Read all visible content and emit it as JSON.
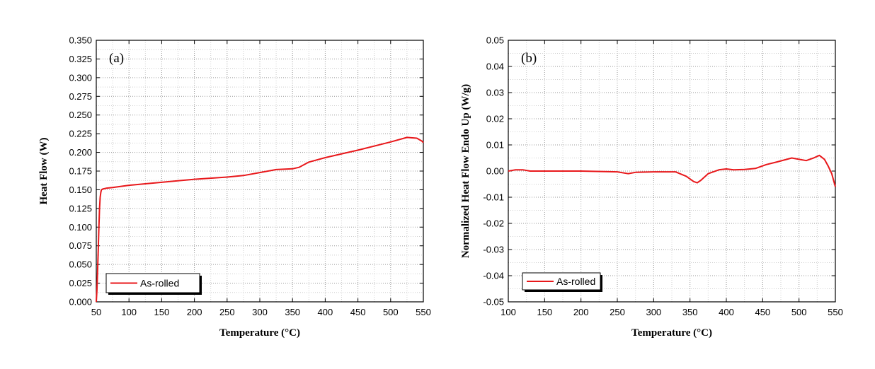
{
  "chart_data": [
    {
      "type": "line",
      "panel_label": "(a)",
      "xlabel": "Temperature (°C)",
      "ylabel": "Heat Flow (W)",
      "xlim": [
        50,
        550
      ],
      "ylim": [
        0,
        0.35
      ],
      "x_ticks": [
        "50",
        "100",
        "150",
        "200",
        "250",
        "300",
        "350",
        "400",
        "450",
        "500",
        "550"
      ],
      "y_ticks": [
        "0.000",
        "0.025",
        "0.050",
        "0.075",
        "0.100",
        "0.125",
        "0.150",
        "0.175",
        "0.200",
        "0.225",
        "0.250",
        "0.275",
        "0.300",
        "0.325",
        "0.350"
      ],
      "grid": true,
      "legend_position": "bottom-left",
      "line_color": "#e8181b",
      "series": [
        {
          "name": "As-rolled",
          "x": [
            50,
            51,
            52,
            53,
            54,
            55,
            56,
            57,
            58,
            60,
            65,
            75,
            100,
            150,
            200,
            250,
            275,
            300,
            325,
            350,
            360,
            375,
            400,
            450,
            500,
            525,
            540,
            548,
            550
          ],
          "y": [
            0.0,
            0.015,
            0.04,
            0.07,
            0.1,
            0.125,
            0.14,
            0.147,
            0.15,
            0.151,
            0.152,
            0.153,
            0.156,
            0.16,
            0.164,
            0.167,
            0.169,
            0.173,
            0.177,
            0.178,
            0.18,
            0.187,
            0.193,
            0.203,
            0.214,
            0.22,
            0.219,
            0.215,
            0.213
          ]
        }
      ]
    },
    {
      "type": "line",
      "panel_label": "(b)",
      "xlabel": "Temperature (°C)",
      "ylabel": "Normalized Heat Flow Endo Up (W/g)",
      "xlim": [
        100,
        550
      ],
      "ylim": [
        -0.05,
        0.05
      ],
      "x_ticks": [
        "100",
        "150",
        "200",
        "250",
        "300",
        "350",
        "400",
        "450",
        "500",
        "550"
      ],
      "y_ticks": [
        "-0.05",
        "-0.04",
        "-0.03",
        "-0.02",
        "-0.01",
        "0.00",
        "0.01",
        "0.02",
        "0.03",
        "0.04",
        "0.05"
      ],
      "grid": true,
      "legend_position": "bottom-left",
      "line_color": "#e8181b",
      "series": [
        {
          "name": "As-rolled",
          "x": [
            100,
            110,
            120,
            130,
            150,
            200,
            250,
            265,
            275,
            300,
            330,
            345,
            355,
            360,
            365,
            375,
            390,
            400,
            410,
            425,
            440,
            455,
            470,
            490,
            500,
            510,
            520,
            528,
            535,
            540,
            545,
            550
          ],
          "y": [
            0.0,
            0.0005,
            0.0005,
            0.0,
            0.0,
            0.0,
            -0.0003,
            -0.001,
            -0.0005,
            -0.0003,
            -0.0003,
            -0.002,
            -0.004,
            -0.0045,
            -0.0035,
            -0.001,
            0.0005,
            0.0008,
            0.0005,
            0.0006,
            0.001,
            0.0025,
            0.0035,
            0.005,
            0.0045,
            0.004,
            0.005,
            0.006,
            0.0045,
            0.002,
            -0.001,
            -0.006
          ]
        }
      ]
    }
  ]
}
